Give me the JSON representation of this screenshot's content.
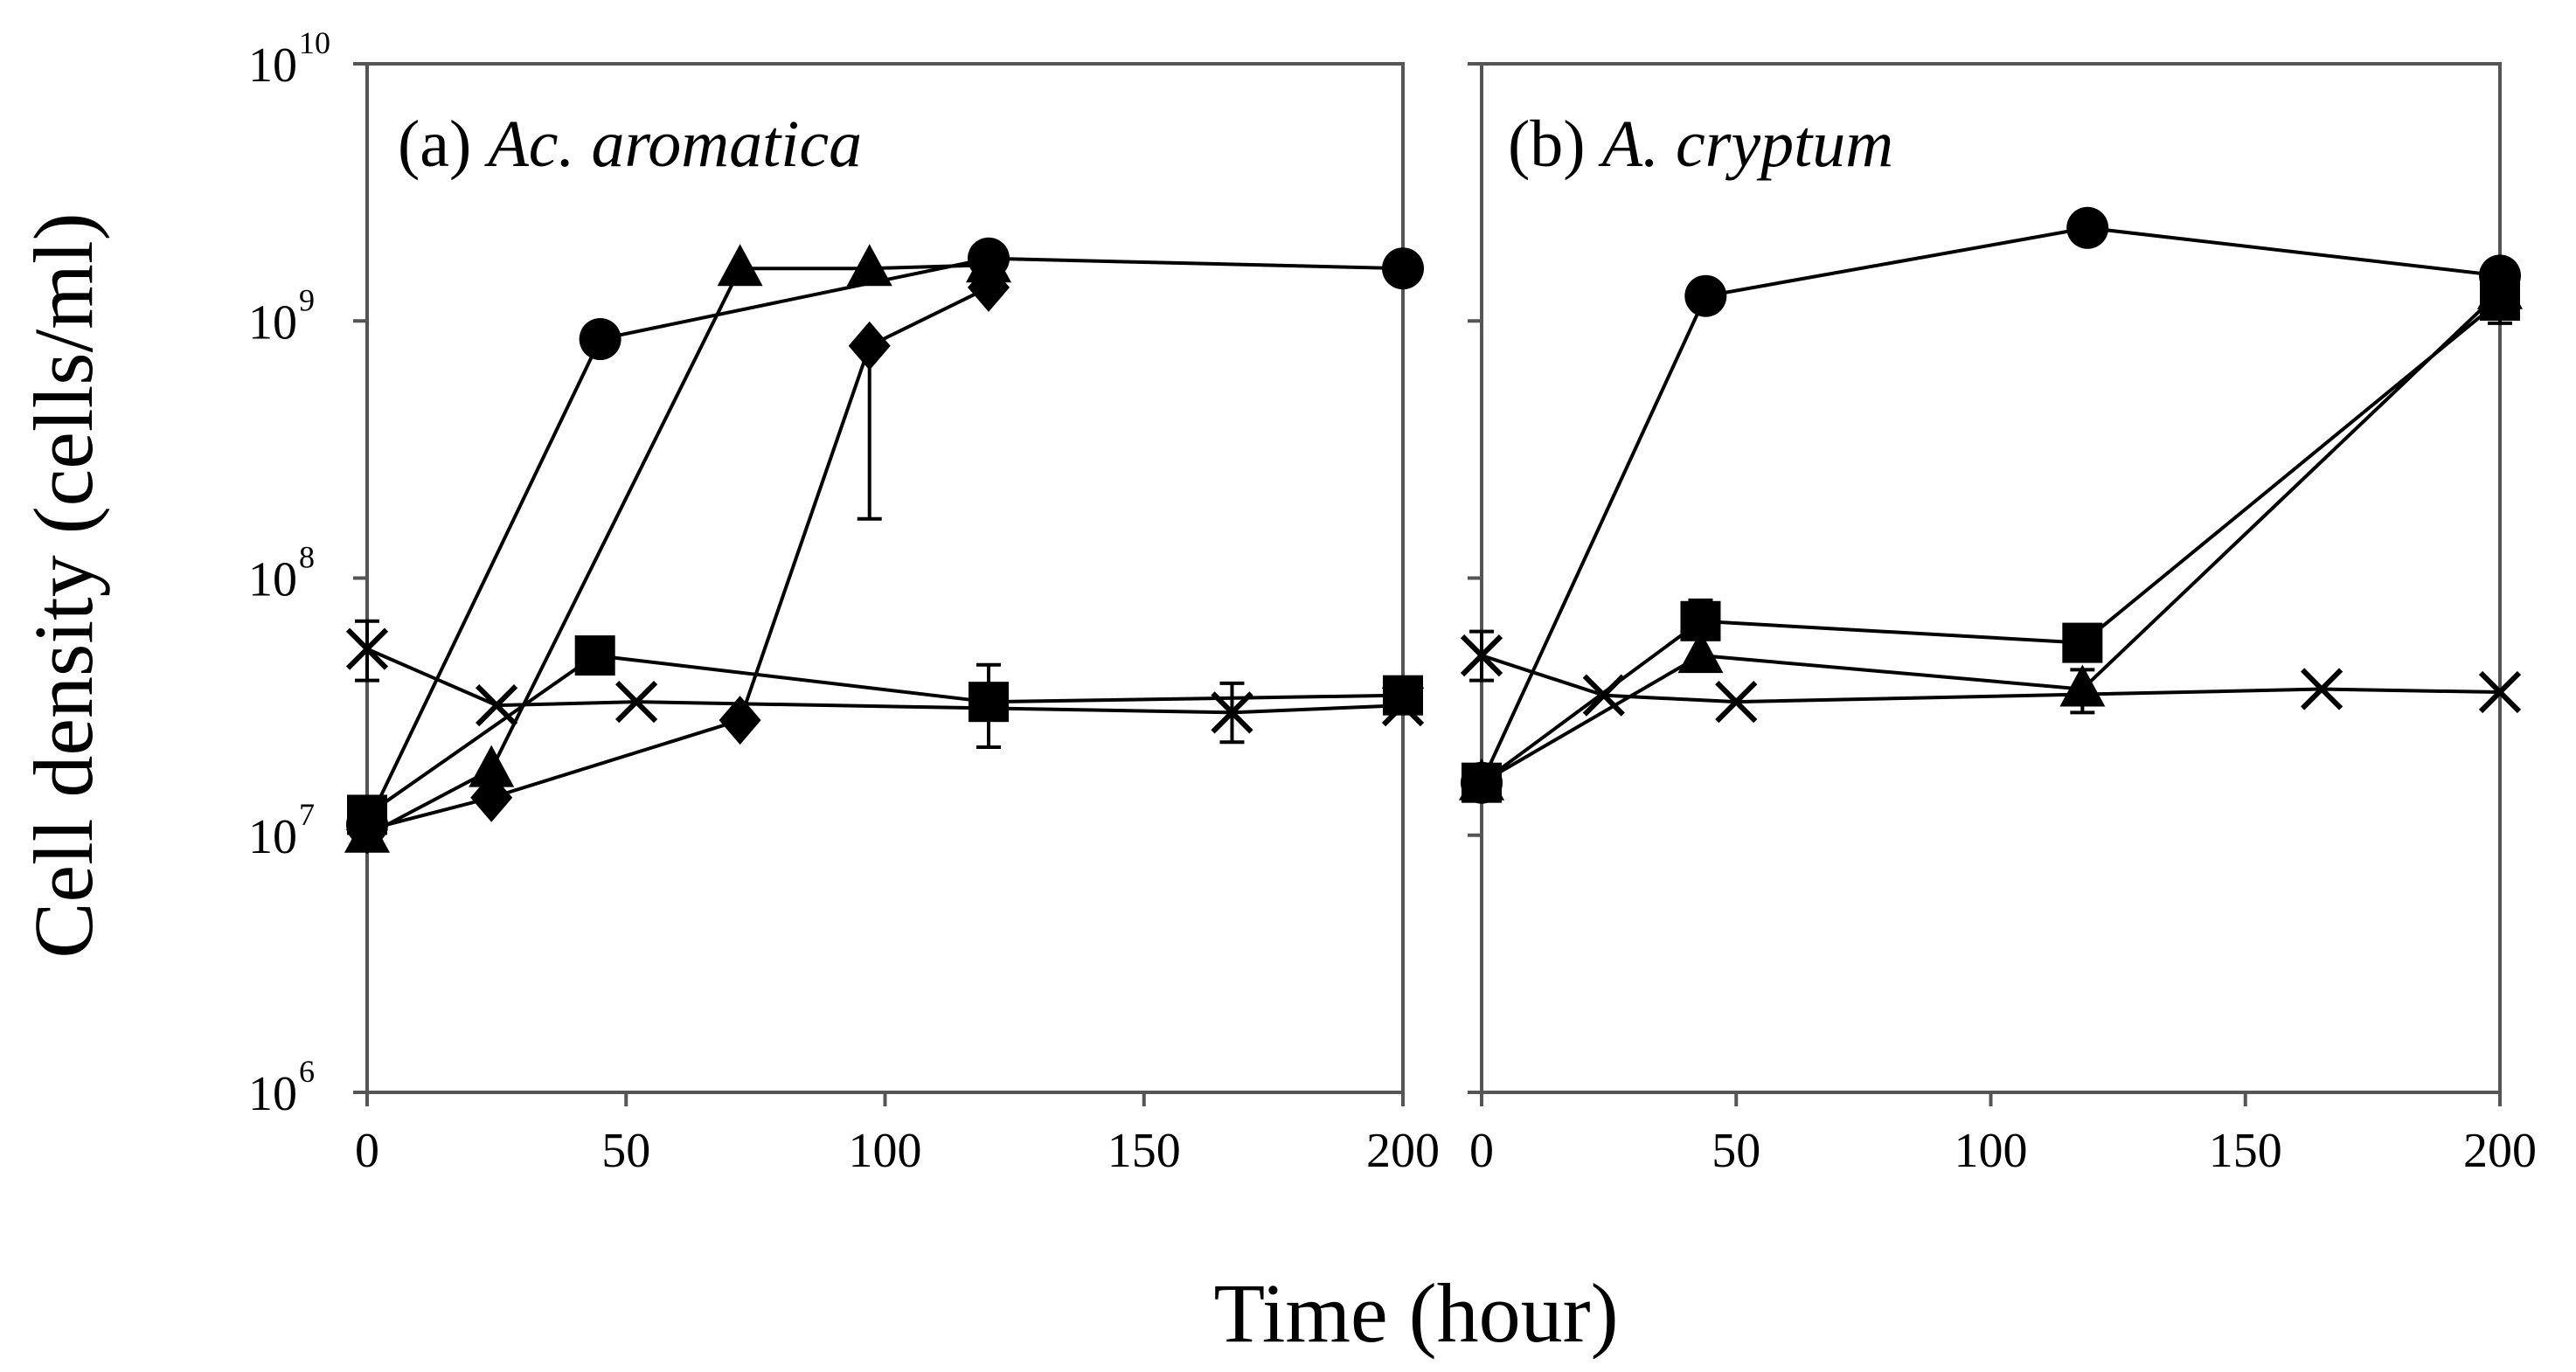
{
  "figure": {
    "ylabel": "Cell density (cells/ml)",
    "xlabel": "Time (hour)"
  },
  "chart_data": [
    {
      "type": "line",
      "panel": "a",
      "title_prefix": "(a)",
      "title_species": "Ac. aromatica",
      "xlim": [
        0,
        200
      ],
      "ylim_log10": [
        6,
        10
      ],
      "yscale": "log",
      "x_ticks": [
        0,
        50,
        100,
        150,
        200
      ],
      "y_ticks": [
        {
          "base": "10",
          "exp": "10"
        },
        {
          "base": "10",
          "exp": "9"
        },
        {
          "base": "10",
          "exp": "8"
        },
        {
          "base": "10",
          "exp": "7"
        },
        {
          "base": "10",
          "exp": "6"
        }
      ],
      "series": [
        {
          "name": "circle",
          "marker": "circle",
          "points": [
            [
              0,
              11000000.0
            ],
            [
              45,
              850000000.0
            ],
            [
              120,
              1750000000.0
            ],
            [
              200,
              1600000000.0
            ]
          ]
        },
        {
          "name": "triangle",
          "marker": "triangle",
          "points": [
            [
              0,
              10000000.0
            ],
            [
              24,
              18000000.0
            ],
            [
              72,
              1600000000.0
            ],
            [
              97,
              1600000000.0
            ],
            [
              120,
              1650000000.0
            ]
          ]
        },
        {
          "name": "diamond",
          "marker": "diamond",
          "points": [
            [
              0,
              10500000.0
            ],
            [
              24,
              14000000.0
            ],
            [
              72,
              28000000.0
            ],
            [
              97,
              800000000.0
            ],
            [
              120,
              1350000000.0
            ]
          ],
          "errors": [
            {
              "x": 97,
              "low": 170000000.0,
              "high": 800000000.0
            }
          ]
        },
        {
          "name": "square",
          "marker": "square",
          "points": [
            [
              0,
              12000000.0
            ],
            [
              44,
              50000000.0
            ],
            [
              120,
              33000000.0
            ],
            [
              200,
              35000000.0
            ]
          ],
          "errors": [
            {
              "x": 120,
              "low": 22000000.0,
              "high": 46000000.0
            }
          ]
        },
        {
          "name": "cross",
          "marker": "x",
          "points": [
            [
              0,
              53000000.0
            ],
            [
              25,
              32000000.0
            ],
            [
              52,
              33000000.0
            ],
            [
              167,
              30000000.0
            ],
            [
              200,
              32000000.0
            ]
          ],
          "errors": [
            {
              "x": 0,
              "low": 40000000.0,
              "high": 68000000.0
            },
            {
              "x": 167,
              "low": 23000000.0,
              "high": 39000000.0
            }
          ]
        }
      ]
    },
    {
      "type": "line",
      "panel": "b",
      "title_prefix": "(b)",
      "title_species": "A. cryptum",
      "xlim": [
        0,
        200
      ],
      "ylim_log10": [
        6,
        10
      ],
      "yscale": "log",
      "x_ticks": [
        0,
        50,
        100,
        150,
        200
      ],
      "series": [
        {
          "name": "circle",
          "marker": "circle",
          "points": [
            [
              0,
              16000000.0
            ],
            [
              44,
              1250000000.0
            ],
            [
              119,
              2300000000.0
            ],
            [
              200,
              1500000000.0
            ]
          ]
        },
        {
          "name": "square",
          "marker": "square",
          "points": [
            [
              0,
              16000000.0
            ],
            [
              43,
              68000000.0
            ],
            [
              118,
              56000000.0
            ],
            [
              200,
              1200000000.0
            ]
          ],
          "errors": [
            {
              "x": 43,
              "low": 58000000.0,
              "high": 82000000.0
            },
            {
              "x": 200,
              "low": 980000000.0,
              "high": 1400000000.0
            }
          ]
        },
        {
          "name": "triangle",
          "marker": "triangle",
          "points": [
            [
              0,
              16000000.0
            ],
            [
              43,
              50000000.0
            ],
            [
              118,
              37000000.0
            ],
            [
              200,
              1300000000.0
            ]
          ],
          "errors": [
            {
              "x": 118,
              "low": 30000000.0,
              "high": 44000000.0
            }
          ]
        },
        {
          "name": "cross",
          "marker": "x",
          "points": [
            [
              0,
              50000000.0
            ],
            [
              24,
              35000000.0
            ],
            [
              50,
              33000000.0
            ],
            [
              165,
              37000000.0
            ],
            [
              200,
              36000000.0
            ]
          ],
          "errors": [
            {
              "x": 0,
              "low": 40000000.0,
              "high": 62000000.0
            }
          ]
        }
      ]
    }
  ]
}
